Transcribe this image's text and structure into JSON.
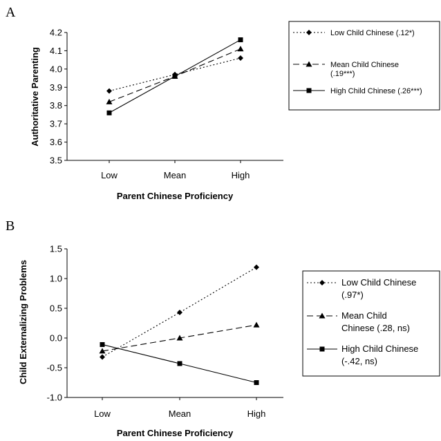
{
  "chart_data": [
    {
      "type": "line",
      "panel_label": "A",
      "xlabel": "Parent Chinese Proficiency",
      "ylabel": "Authoritative Parenting",
      "categories": [
        "Low",
        "Mean",
        "High"
      ],
      "ylim": [
        3.5,
        4.2
      ],
      "yticks": [
        "3.5",
        "3.6",
        "3.7",
        "3.8",
        "3.9",
        "4.0",
        "4.1",
        "4.2"
      ],
      "grid": false,
      "legend_placement": "right",
      "series": [
        {
          "name": "Low  Child Chinese (.12*)",
          "name_lines": [
            "Low  Child Chinese (.12*)"
          ],
          "values": [
            3.88,
            3.97,
            4.06
          ],
          "line": "dotted",
          "marker": "diamond"
        },
        {
          "name": "Mean Child Chinese (.19***)",
          "name_lines": [
            "Mean Child Chinese",
            "(.19***)"
          ],
          "values": [
            3.82,
            3.96,
            4.11
          ],
          "line": "dashed",
          "marker": "triangle"
        },
        {
          "name": "High Child Chinese (.26***)",
          "name_lines": [
            "High Child Chinese (.26***)"
          ],
          "values": [
            3.76,
            3.96,
            4.16
          ],
          "line": "solid",
          "marker": "square"
        }
      ]
    },
    {
      "type": "line",
      "panel_label": "B",
      "xlabel": "Parent Chinese Proficiency",
      "ylabel": "Child Externalizing Problems",
      "categories": [
        "Low",
        "Mean",
        "High"
      ],
      "ylim": [
        -1.0,
        1.5
      ],
      "yticks": [
        "-1.0",
        "-0.5",
        "0.0",
        "0.5",
        "1.0",
        "1.5"
      ],
      "grid": false,
      "legend_placement": "right",
      "series": [
        {
          "name": "Low Child Chinese (.97*)",
          "name_lines": [
            "Low Child Chinese",
            "(.97*)"
          ],
          "values": [
            -0.32,
            0.43,
            1.19
          ],
          "line": "dotted",
          "marker": "diamond"
        },
        {
          "name": "Mean Child Chinese (.28, ns)",
          "name_lines": [
            "Mean Child",
            "Chinese (.28, ns)"
          ],
          "values": [
            -0.22,
            0.0,
            0.22
          ],
          "line": "dashed",
          "marker": "triangle"
        },
        {
          "name": "High Child Chinese (-.42, ns)",
          "name_lines": [
            "High Child Chinese",
            "(-.42, ns)"
          ],
          "values": [
            -0.11,
            -0.43,
            -0.75
          ],
          "line": "solid",
          "marker": "square"
        }
      ]
    }
  ]
}
